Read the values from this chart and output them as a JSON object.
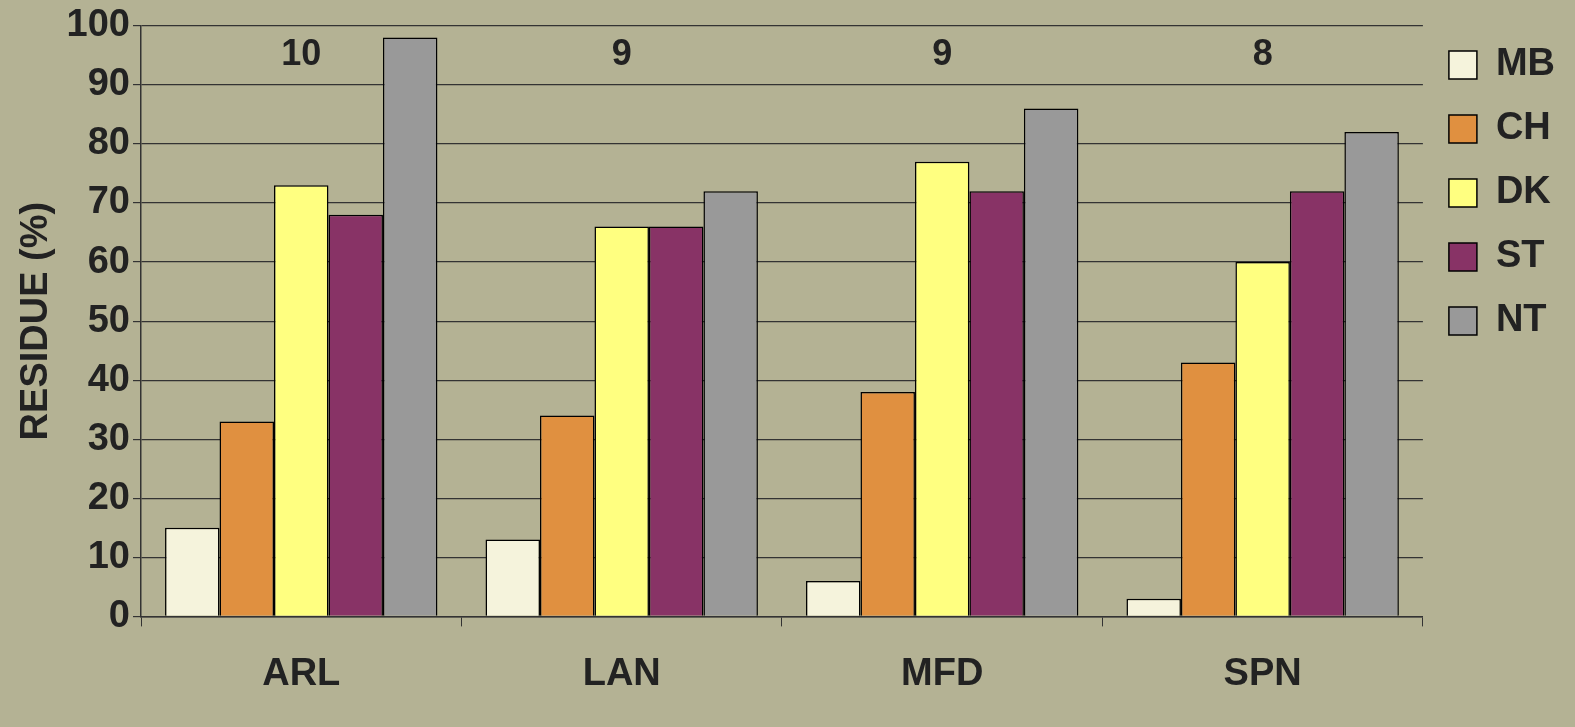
{
  "chart_data": {
    "type": "bar",
    "ylabel": "RESIDUE (%)",
    "categories": [
      "ARL",
      "LAN",
      "MFD",
      "SPN"
    ],
    "series": [
      {
        "name": "MB",
        "color": "#f5f3dc",
        "values": [
          15,
          13,
          6,
          3
        ]
      },
      {
        "name": "CH",
        "color": "#e09040",
        "values": [
          33,
          34,
          38,
          43
        ]
      },
      {
        "name": "DK",
        "color": "#ffff80",
        "values": [
          73,
          66,
          77,
          60
        ]
      },
      {
        "name": "ST",
        "color": "#883366",
        "values": [
          68,
          66,
          72,
          72
        ]
      },
      {
        "name": "NT",
        "color": "#999999",
        "values": [
          98,
          72,
          86,
          82
        ]
      }
    ],
    "ylim": [
      0,
      100
    ],
    "yticks": [
      0,
      10,
      20,
      30,
      40,
      50,
      60,
      70,
      80,
      90,
      100
    ],
    "grid": "y",
    "legend": "top right",
    "annotations": [
      "10",
      "9",
      "9",
      "8"
    ]
  }
}
